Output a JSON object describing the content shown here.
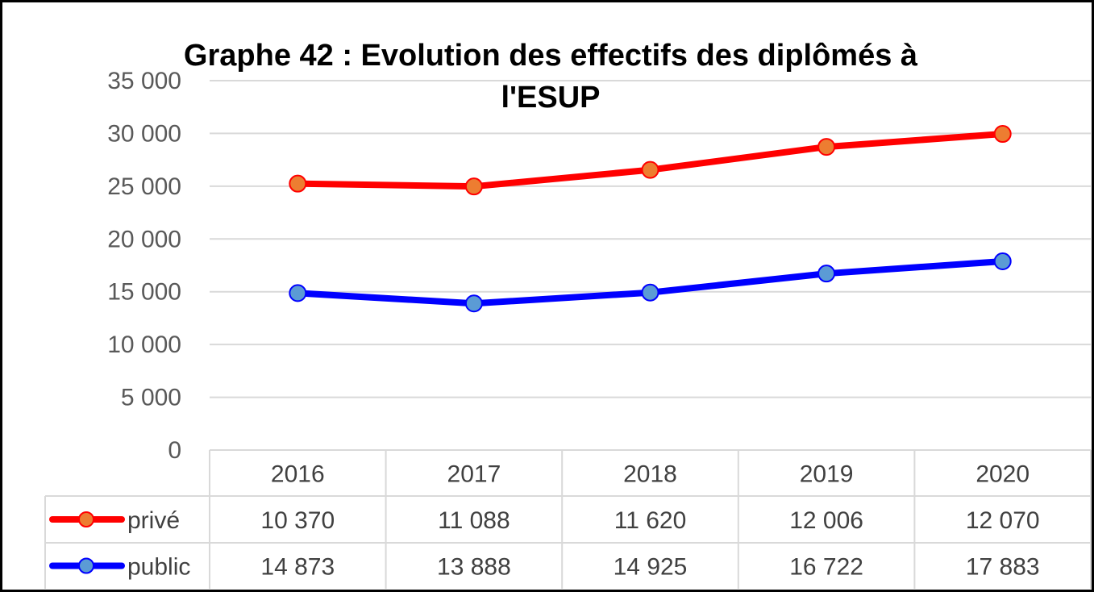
{
  "title": "Graphe 42 : Evolution des effectifs des diplômés à\nl'ESUP",
  "chart_data": {
    "type": "line",
    "title": "Graphe 42 : Evolution des effectifs des diplômés à l'ESUP",
    "categories": [
      "2016",
      "2017",
      "2018",
      "2019",
      "2020"
    ],
    "ylim": [
      0,
      35000
    ],
    "yticks": [
      0,
      5000,
      10000,
      15000,
      20000,
      25000,
      30000,
      35000
    ],
    "ytick_labels": [
      "0",
      "5 000",
      "10 000",
      "15 000",
      "20 000",
      "25 000",
      "30 000",
      "35 000"
    ],
    "grid": true,
    "series": [
      {
        "name": "privé",
        "line_color": "#ff0000",
        "marker_color": "#ed7d31",
        "plotted_values": [
          25243,
          24976,
          26545,
          28728,
          29953
        ],
        "table_values": [
          "10 370",
          "11 088",
          "11 620",
          "12 006",
          "12 070"
        ]
      },
      {
        "name": "public",
        "line_color": "#0000ff",
        "marker_color": "#5b9bd5",
        "plotted_values": [
          14873,
          13888,
          14925,
          16722,
          17883
        ],
        "table_values": [
          "14 873",
          "13 888",
          "14 925",
          "16 722",
          "17 883"
        ]
      }
    ],
    "data_table": true
  }
}
